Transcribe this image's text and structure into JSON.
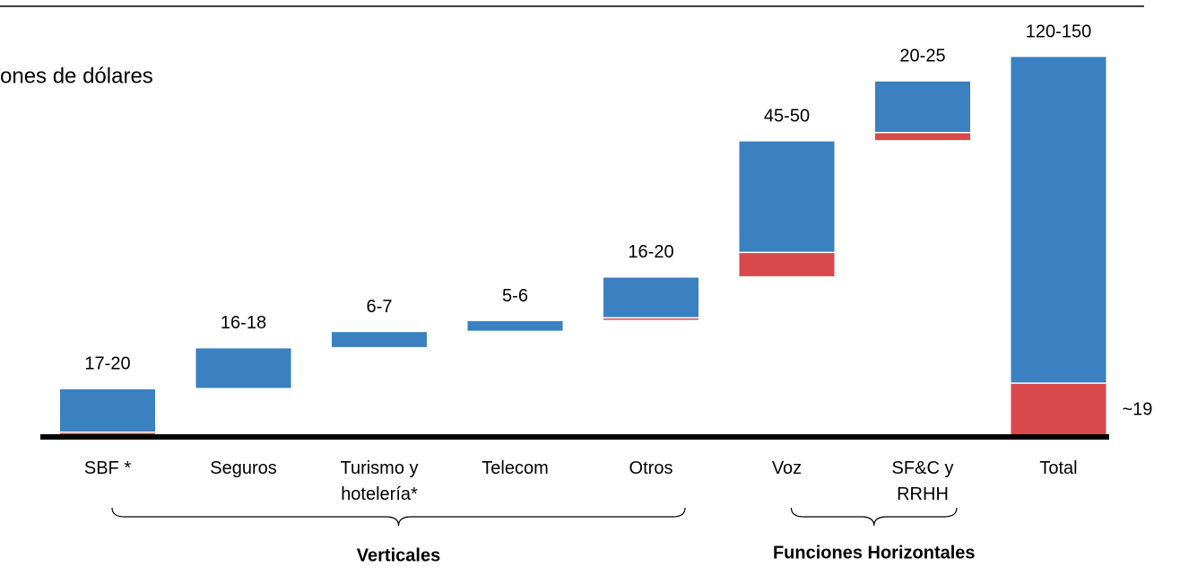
{
  "chart_data": {
    "type": "waterfall",
    "title": "ones de dólares",
    "categories": [
      "SBF *",
      "Seguros",
      "Turismo y hotelería*",
      "Telecom",
      "Otros",
      "Voz",
      "SF&C y RRHH",
      "Total"
    ],
    "range_labels": [
      "17-20",
      "16-18",
      "6-7",
      "5-6",
      "16-20",
      "45-50",
      "20-25",
      "120-150"
    ],
    "series": [
      {
        "color": "#d9484b",
        "values": [
          1,
          0,
          0,
          0,
          1,
          9,
          3,
          19
        ],
        "value_labels": [
          null,
          null,
          null,
          null,
          null,
          null,
          null,
          "~19"
        ]
      },
      {
        "color": "#3b80c0",
        "values": [
          16,
          15,
          6,
          4,
          15,
          41,
          19,
          120
        ]
      }
    ],
    "groups": [
      {
        "label": "Verticales",
        "from": 0,
        "to": 4
      },
      {
        "label": "Funciones Horizontales",
        "from": 5,
        "to": 6
      }
    ],
    "ylim": [
      0,
      139
    ]
  }
}
